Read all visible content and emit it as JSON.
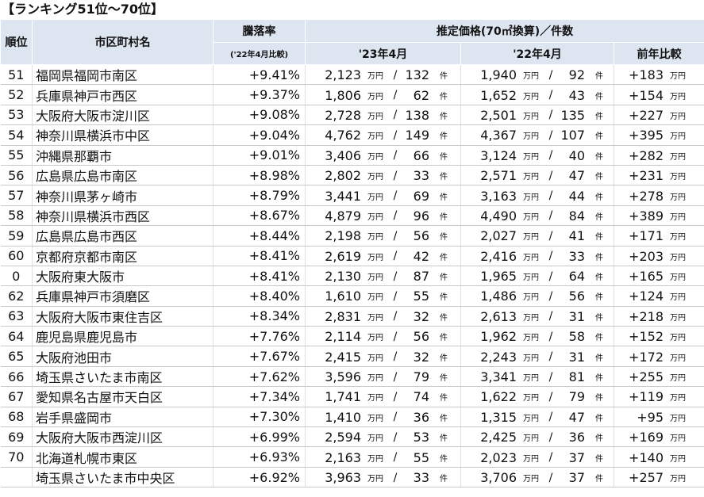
{
  "title": "【ランキング51位～70位】",
  "header": {
    "rank": "順位",
    "name": "市区町村名",
    "rate": "騰落率",
    "rate_note": "('22年4月比較)",
    "price": "推定価格(70㎡換算)／件数",
    "y23": "'23年4月",
    "y22": "'22年4月",
    "diff": "前年比較"
  },
  "units": {
    "yen": "万円",
    "sep": "/",
    "count": "件"
  },
  "rows": [
    [
      "51",
      "福岡県福岡市南区",
      "+9.41%",
      "2,123",
      "132",
      "1,940",
      "92",
      "+183"
    ],
    [
      "52",
      "兵庫県神戸市西区",
      "+9.37%",
      "1,806",
      "62",
      "1,652",
      "43",
      "+154"
    ],
    [
      "53",
      "大阪府大阪市淀川区",
      "+9.08%",
      "2,728",
      "138",
      "2,501",
      "135",
      "+227"
    ],
    [
      "54",
      "神奈川県横浜市中区",
      "+9.04%",
      "4,762",
      "149",
      "4,367",
      "107",
      "+395"
    ],
    [
      "55",
      "沖縄県那覇市",
      "+9.01%",
      "3,406",
      "66",
      "3,124",
      "40",
      "+282"
    ],
    [
      "56",
      "広島県広島市南区",
      "+8.98%",
      "2,802",
      "33",
      "2,571",
      "47",
      "+231"
    ],
    [
      "57",
      "神奈川県茅ヶ崎市",
      "+8.79%",
      "3,441",
      "69",
      "3,163",
      "44",
      "+278"
    ],
    [
      "58",
      "神奈川県横浜市西区",
      "+8.67%",
      "4,879",
      "96",
      "4,490",
      "84",
      "+389"
    ],
    [
      "59",
      "広島県広島市西区",
      "+8.44%",
      "2,198",
      "56",
      "2,027",
      "41",
      "+171"
    ],
    [
      "60",
      "京都府京都市南区",
      "+8.41%",
      "2,619",
      "42",
      "2,416",
      "33",
      "+203"
    ],
    [
      "0",
      "大阪府東大阪市",
      "+8.41%",
      "2,130",
      "87",
      "1,965",
      "64",
      "+165"
    ],
    [
      "62",
      "兵庫県神戸市須磨区",
      "+8.40%",
      "1,610",
      "55",
      "1,486",
      "56",
      "+124"
    ],
    [
      "63",
      "大阪府大阪市東住吉区",
      "+8.34%",
      "2,831",
      "32",
      "2,613",
      "31",
      "+218"
    ],
    [
      "64",
      "鹿児島県鹿児島市",
      "+7.76%",
      "2,114",
      "56",
      "1,962",
      "58",
      "+152"
    ],
    [
      "65",
      "大阪府池田市",
      "+7.67%",
      "2,415",
      "32",
      "2,243",
      "31",
      "+172"
    ],
    [
      "66",
      "埼玉県さいたま市南区",
      "+7.62%",
      "3,596",
      "79",
      "3,341",
      "81",
      "+255"
    ],
    [
      "67",
      "愛知県名古屋市天白区",
      "+7.34%",
      "1,741",
      "74",
      "1,622",
      "79",
      "+119"
    ],
    [
      "68",
      "岩手県盛岡市",
      "+7.30%",
      "1,410",
      "36",
      "1,315",
      "47",
      "+95"
    ],
    [
      "69",
      "大阪府大阪市西淀川区",
      "+6.99%",
      "2,594",
      "53",
      "2,425",
      "36",
      "+169"
    ],
    [
      "70",
      "北海道札幌市東区",
      "+6.93%",
      "2,163",
      "55",
      "2,023",
      "37",
      "+140"
    ],
    [
      null,
      "埼玉県さいたま市中央区",
      "+6.92%",
      "3,963",
      "33",
      "3,706",
      "37",
      "+257"
    ]
  ]
}
